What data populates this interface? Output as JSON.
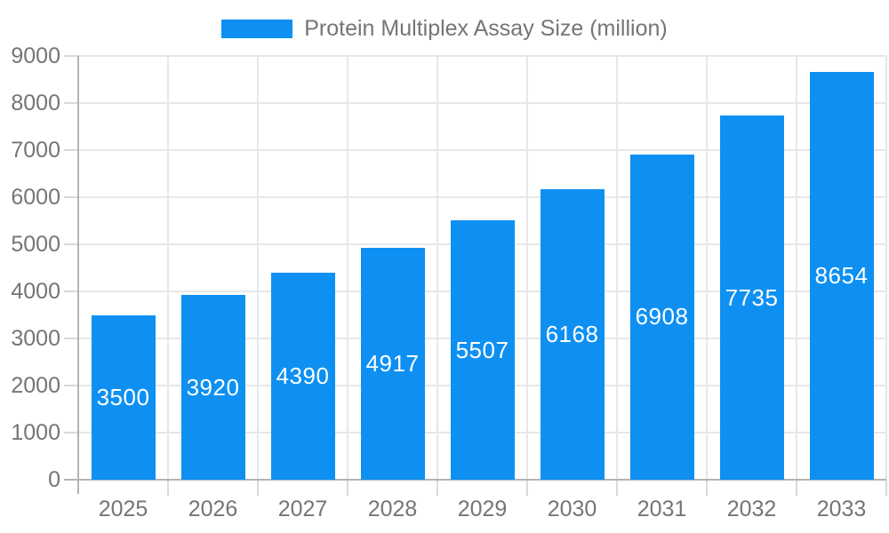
{
  "legend": {
    "label": "Protein Multiplex Assay Size (million)"
  },
  "chart_data": {
    "type": "bar",
    "title": "Protein Multiplex Assay Size (million)",
    "categories": [
      "2025",
      "2026",
      "2027",
      "2028",
      "2029",
      "2030",
      "2031",
      "2032",
      "2033"
    ],
    "values": [
      3500,
      3920,
      4390,
      4917,
      5507,
      6168,
      6908,
      7735,
      8654
    ],
    "xlabel": "",
    "ylabel": "",
    "ylim": [
      0,
      9000
    ],
    "ytick_step": 1000,
    "yticks": [
      0,
      1000,
      2000,
      3000,
      4000,
      5000,
      6000,
      7000,
      8000,
      9000
    ],
    "grid": true,
    "legend_position": "top",
    "value_labels": "inside-center"
  },
  "colors": {
    "bar": "#0e90f2",
    "grid": "#e7e7e7",
    "axis": "#b3b3b3",
    "tick_minor": "#d9d9d9",
    "label_text": "#757575",
    "value_text": "#ffffff",
    "background": "#ffffff"
  }
}
